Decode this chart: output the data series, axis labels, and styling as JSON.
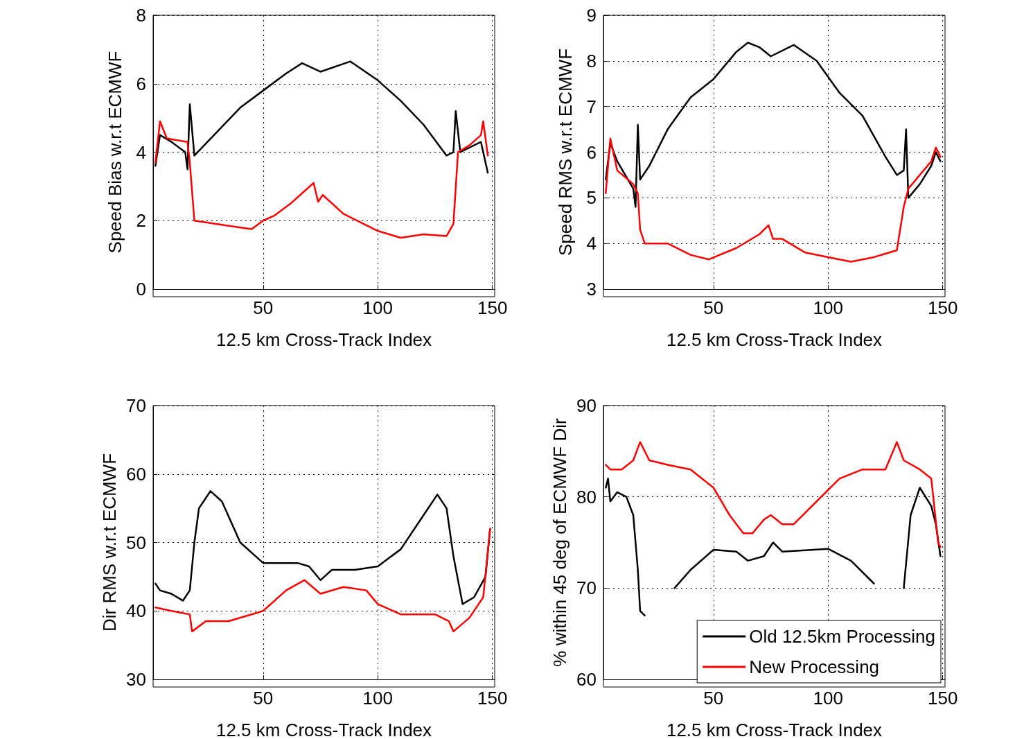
{
  "chart_data": [
    {
      "type": "line",
      "xlabel": "12.5 km Cross-Track Index",
      "ylabel": "Speed Bias w.r.t ECMWF",
      "xlim": [
        2,
        151
      ],
      "xticks": [
        50,
        100,
        150
      ],
      "ylim": [
        0,
        8
      ],
      "yticks": [
        0,
        2,
        4,
        6,
        8
      ],
      "grid": true,
      "marker": "none",
      "series": [
        {
          "color": "#000000",
          "x": [
            3,
            5,
            10,
            16,
            17,
            18,
            20,
            30,
            40,
            50,
            60,
            67,
            75,
            88,
            100,
            110,
            120,
            130,
            133,
            134,
            136,
            145,
            148
          ],
          "values": [
            3.6,
            4.5,
            4.3,
            4.0,
            3.5,
            5.4,
            3.9,
            4.6,
            5.3,
            5.8,
            6.3,
            6.6,
            6.35,
            6.65,
            6.1,
            5.5,
            4.8,
            3.9,
            4.0,
            5.2,
            4.0,
            4.3,
            3.4
          ]
        },
        {
          "color": "#ff0000",
          "x": [
            3,
            5,
            8,
            17,
            18,
            20,
            25,
            35,
            45,
            50,
            55,
            62,
            67,
            72,
            74,
            76,
            85,
            100,
            110,
            120,
            130,
            133,
            135,
            140,
            145,
            146,
            148
          ],
          "values": [
            3.7,
            4.9,
            4.4,
            4.3,
            3.7,
            2.0,
            1.95,
            1.85,
            1.75,
            2.0,
            2.15,
            2.5,
            2.8,
            3.1,
            2.55,
            2.75,
            2.2,
            1.7,
            1.5,
            1.6,
            1.55,
            1.9,
            4.0,
            4.2,
            4.5,
            4.9,
            3.9
          ]
        }
      ]
    },
    {
      "type": "line",
      "xlabel": "12.5 km Cross-Track Index",
      "ylabel": "Speed RMS w.r.t ECMWF",
      "xlim": [
        2,
        151
      ],
      "xticks": [
        50,
        100,
        150
      ],
      "ylim": [
        3,
        9
      ],
      "yticks": [
        3,
        4,
        5,
        6,
        7,
        8,
        9
      ],
      "grid": true,
      "marker": "none",
      "series": [
        {
          "color": "#000000",
          "x": [
            3,
            5,
            8,
            15,
            16,
            17,
            18,
            22,
            30,
            40,
            50,
            60,
            65,
            70,
            75,
            85,
            95,
            105,
            115,
            125,
            130,
            133,
            134,
            135,
            140,
            145,
            147,
            149
          ],
          "values": [
            5.4,
            6.2,
            5.8,
            5.2,
            4.8,
            6.6,
            5.4,
            5.7,
            6.5,
            7.2,
            7.6,
            8.2,
            8.4,
            8.3,
            8.1,
            8.35,
            8.0,
            7.3,
            6.8,
            5.9,
            5.5,
            5.6,
            6.5,
            5.0,
            5.3,
            5.7,
            6.0,
            5.8
          ]
        },
        {
          "color": "#ff0000",
          "x": [
            3,
            5,
            8,
            15,
            17,
            18,
            20,
            30,
            40,
            48,
            60,
            70,
            74,
            76,
            80,
            90,
            100,
            110,
            120,
            130,
            133,
            135,
            145,
            147,
            149
          ],
          "values": [
            5.1,
            6.3,
            5.6,
            5.3,
            5.1,
            4.3,
            4.0,
            4.0,
            3.75,
            3.65,
            3.9,
            4.2,
            4.4,
            4.1,
            4.1,
            3.8,
            3.7,
            3.6,
            3.7,
            3.85,
            4.8,
            5.2,
            5.8,
            6.1,
            5.9
          ]
        }
      ]
    },
    {
      "type": "line",
      "xlabel": "12.5 km Cross-Track Index",
      "ylabel": "Dir RMS w.r.t ECMWF",
      "xlim": [
        2,
        151
      ],
      "xticks": [
        50,
        100,
        150
      ],
      "ylim": [
        30,
        70
      ],
      "yticks": [
        30,
        40,
        50,
        60,
        70
      ],
      "grid": true,
      "marker": "none",
      "series": [
        {
          "color": "#000000",
          "x": [
            3,
            5,
            10,
            15,
            18,
            20,
            22,
            27,
            32,
            40,
            50,
            65,
            70,
            75,
            80,
            90,
            100,
            110,
            120,
            126,
            130,
            133,
            137,
            142,
            147,
            149
          ],
          "values": [
            44,
            43,
            42.5,
            41.5,
            43,
            50,
            55,
            57.5,
            56,
            50,
            47,
            47,
            46.5,
            44.5,
            46,
            46,
            46.5,
            49,
            54,
            57,
            55,
            48,
            41,
            42,
            45,
            52
          ]
        },
        {
          "color": "#ff0000",
          "x": [
            3,
            10,
            18,
            19,
            25,
            35,
            45,
            50,
            60,
            68,
            75,
            85,
            95,
            100,
            110,
            125,
            131,
            133,
            140,
            146,
            149
          ],
          "values": [
            40.5,
            40,
            39.5,
            37,
            38.5,
            38.5,
            39.5,
            40,
            43,
            44.5,
            42.5,
            43.5,
            43,
            41,
            39.5,
            39.5,
            38.5,
            37,
            39,
            42,
            52
          ]
        }
      ]
    },
    {
      "type": "line",
      "xlabel": "12.5 km Cross-Track Index",
      "ylabel": "% within 45 deg of ECMWF Dir",
      "xlim": [
        2,
        151
      ],
      "xticks": [
        50,
        100,
        150
      ],
      "ylim": [
        60,
        90
      ],
      "yticks": [
        60,
        70,
        80,
        90
      ],
      "grid": true,
      "marker": "none",
      "legend": "bottom right",
      "series": [
        {
          "name": "Old 12.5km Processing",
          "color": "#000000",
          "x": [
            3,
            4,
            5,
            8,
            12,
            15,
            17,
            18,
            20,
            25,
            30,
            33,
            40,
            50,
            60,
            65,
            72,
            76,
            80,
            100,
            110,
            120,
            124,
            132,
            133,
            136,
            140,
            145,
            147,
            149
          ],
          "values": [
            81,
            82,
            79.5,
            80.5,
            80,
            78,
            72,
            67.5,
            67,
            null,
            null,
            70,
            72,
            74.2,
            74,
            73,
            73.5,
            75,
            74,
            74.3,
            73,
            70.5,
            null,
            null,
            70,
            78,
            81,
            79,
            77,
            73.5
          ]
        },
        {
          "name": "New Processing",
          "color": "#ff0000",
          "x": [
            3,
            5,
            10,
            15,
            18,
            22,
            30,
            40,
            50,
            57,
            63,
            67,
            72,
            75,
            80,
            85,
            95,
            105,
            115,
            125,
            130,
            133,
            140,
            145,
            148,
            149
          ],
          "values": [
            83.5,
            83,
            83,
            84,
            86,
            84,
            83.5,
            83,
            81,
            78,
            76,
            76,
            77.5,
            78,
            77,
            77,
            79.5,
            82,
            83,
            83,
            86,
            84,
            83,
            82,
            75,
            74.5
          ]
        }
      ]
    }
  ]
}
